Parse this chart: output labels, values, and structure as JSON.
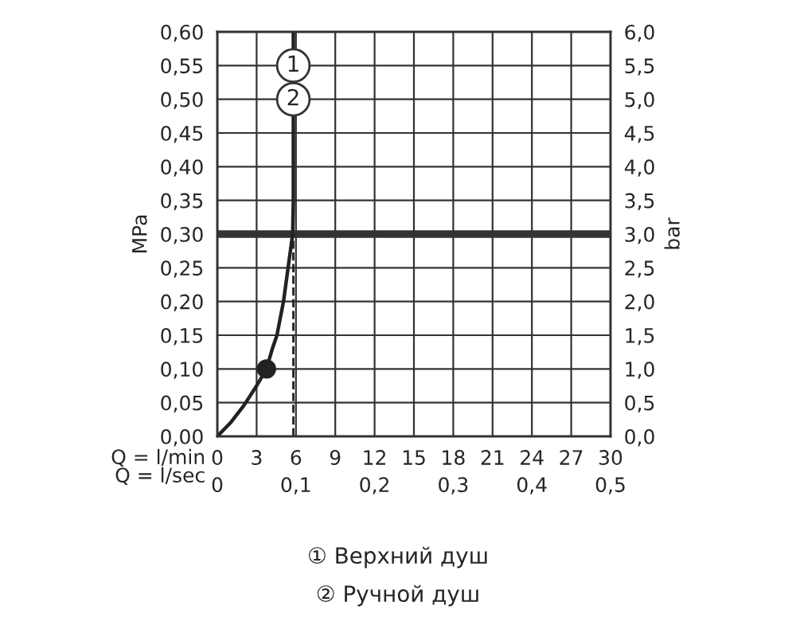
{
  "chart_data": {
    "type": "line",
    "xlabel": "Q = l/min",
    "x2label": "Q = l/sec",
    "ylabel": "MPa",
    "y2label": "bar",
    "xlim": [
      0,
      30
    ],
    "xticks": [
      0,
      3,
      6,
      9,
      12,
      15,
      18,
      21,
      24,
      27,
      30
    ],
    "x2lim": [
      0,
      0.5
    ],
    "x2ticks": [
      0,
      {
        "value": 0.1,
        "label": "0,1"
      },
      {
        "value": 0.2,
        "label": "0,2"
      },
      {
        "value": 0.3,
        "label": "0,3"
      },
      {
        "value": 0.4,
        "label": "0,4"
      },
      {
        "value": 0.5,
        "label": "0,5"
      }
    ],
    "ylim": [
      0,
      0.6
    ],
    "yticks": [
      {
        "value": 0,
        "label": "0,00"
      },
      {
        "value": 0.05,
        "label": "0,05"
      },
      {
        "value": 0.1,
        "label": "0,10"
      },
      {
        "value": 0.15,
        "label": "0,15"
      },
      {
        "value": 0.2,
        "label": "0,20"
      },
      {
        "value": 0.25,
        "label": "0,25"
      },
      {
        "value": 0.3,
        "label": "0,30"
      },
      {
        "value": 0.35,
        "label": "0,35"
      },
      {
        "value": 0.4,
        "label": "0,40"
      },
      {
        "value": 0.45,
        "label": "0,45"
      },
      {
        "value": 0.5,
        "label": "0,50"
      },
      {
        "value": 0.55,
        "label": "0,55"
      },
      {
        "value": 0.6,
        "label": "0,60"
      }
    ],
    "y2lim": [
      0,
      6
    ],
    "y2ticks": [
      {
        "value": 0,
        "label": "0,0"
      },
      {
        "value": 0.5,
        "label": "0,5"
      },
      {
        "value": 1,
        "label": "1,0"
      },
      {
        "value": 1.5,
        "label": "1,5"
      },
      {
        "value": 2,
        "label": "2,0"
      },
      {
        "value": 2.5,
        "label": "2,5"
      },
      {
        "value": 3,
        "label": "3,0"
      },
      {
        "value": 3.5,
        "label": "3,5"
      },
      {
        "value": 4,
        "label": "4,0"
      },
      {
        "value": 4.5,
        "label": "4,5"
      },
      {
        "value": 5,
        "label": "5,0"
      },
      {
        "value": 5.5,
        "label": "5,5"
      },
      {
        "value": 6,
        "label": "6,0"
      }
    ],
    "grid": true,
    "series": [
      {
        "color": "#222222",
        "line_style": "solid",
        "x": [
          0,
          1,
          2,
          3,
          3.75,
          4.2,
          4.55,
          5.05,
          5.4,
          5.75,
          5.8,
          5.8
        ],
        "values": [
          0,
          0.02,
          0.045,
          0.075,
          0.1,
          0.13,
          0.15,
          0.2,
          0.25,
          0.3,
          0.35,
          0.6
        ]
      },
      {
        "color": "#222222",
        "line_style": "dashed",
        "x": [
          5.8,
          5.8
        ],
        "values": [
          0,
          0.3
        ]
      },
      {
        "type": "scatter",
        "color": "#222222",
        "marker": "circle",
        "x": [
          3.75
        ],
        "values": [
          0.1
        ]
      }
    ],
    "ref_lines": [
      {
        "axis": "y",
        "value": 0.3,
        "color": "#333333"
      }
    ],
    "annotations": [
      {
        "text": "1",
        "x": 5.8,
        "y": 0.55
      },
      {
        "text": "2",
        "x": 5.8,
        "y": 0.5
      },
      "① Верхний душ",
      "② Ручной душ"
    ]
  }
}
